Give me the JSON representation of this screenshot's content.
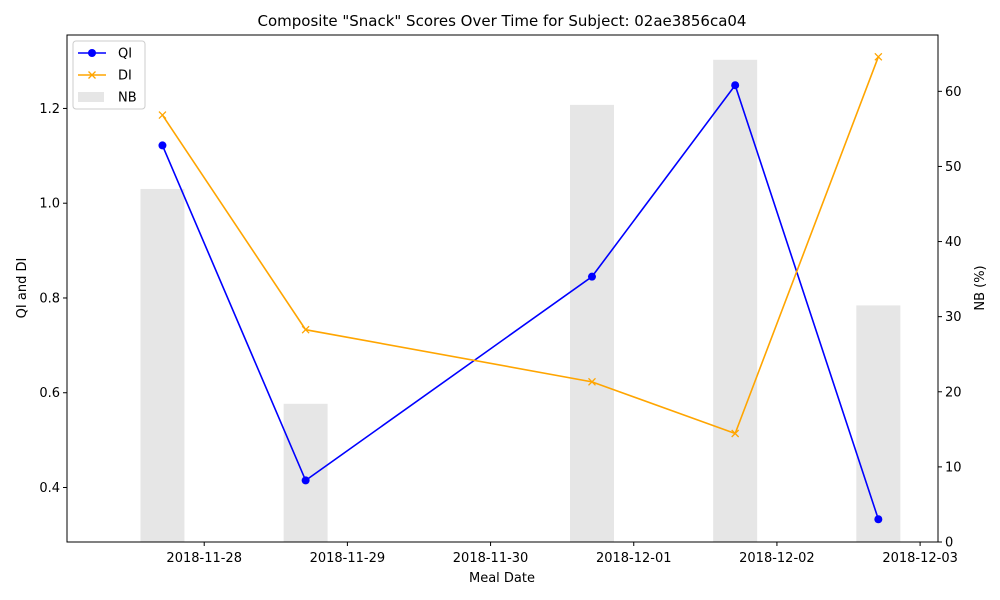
{
  "chart_data": {
    "type": "line",
    "title": "Composite \"Snack\" Scores Over Time for Subject: 02ae3856ca04",
    "xlabel": "Meal Date",
    "ylabel_left": "QI and DI",
    "ylabel_right": "NB (%)",
    "x_ticks": [
      "2018-11-28",
      "2018-11-29",
      "2018-11-30",
      "2018-12-01",
      "2018-12-02",
      "2018-12-03"
    ],
    "x": [
      "2018-11-27 17:00",
      "2018-11-28 17:00",
      "2018-11-30 17:00",
      "2018-12-01 17:00",
      "2018-12-02 17:00"
    ],
    "xlim": [
      "2018-11-27 01:00",
      "2018-12-03 03:00"
    ],
    "ylim_left": [
      0.285,
      1.355
    ],
    "ylim_right": [
      0,
      67.5
    ],
    "yticks_left": [
      "0.4",
      "0.6",
      "0.8",
      "1.0",
      "1.2"
    ],
    "yticks_right": [
      "0",
      "10",
      "20",
      "30",
      "40",
      "50",
      "60"
    ],
    "series": [
      {
        "name": "QI",
        "axis": "left",
        "kind": "line",
        "marker": "circle",
        "color": "#0000ff",
        "values": [
          1.122,
          0.415,
          0.845,
          1.249,
          0.333
        ]
      },
      {
        "name": "DI",
        "axis": "left",
        "kind": "line",
        "marker": "x",
        "color": "#ffa500",
        "values": [
          1.186,
          0.733,
          0.623,
          0.514,
          1.309
        ]
      },
      {
        "name": "NB",
        "axis": "right",
        "kind": "bar",
        "color": "#e6e6e6",
        "values": [
          47,
          18.4,
          58.2,
          64.2,
          31.5
        ]
      }
    ],
    "legend": "top-left",
    "grid": false
  }
}
